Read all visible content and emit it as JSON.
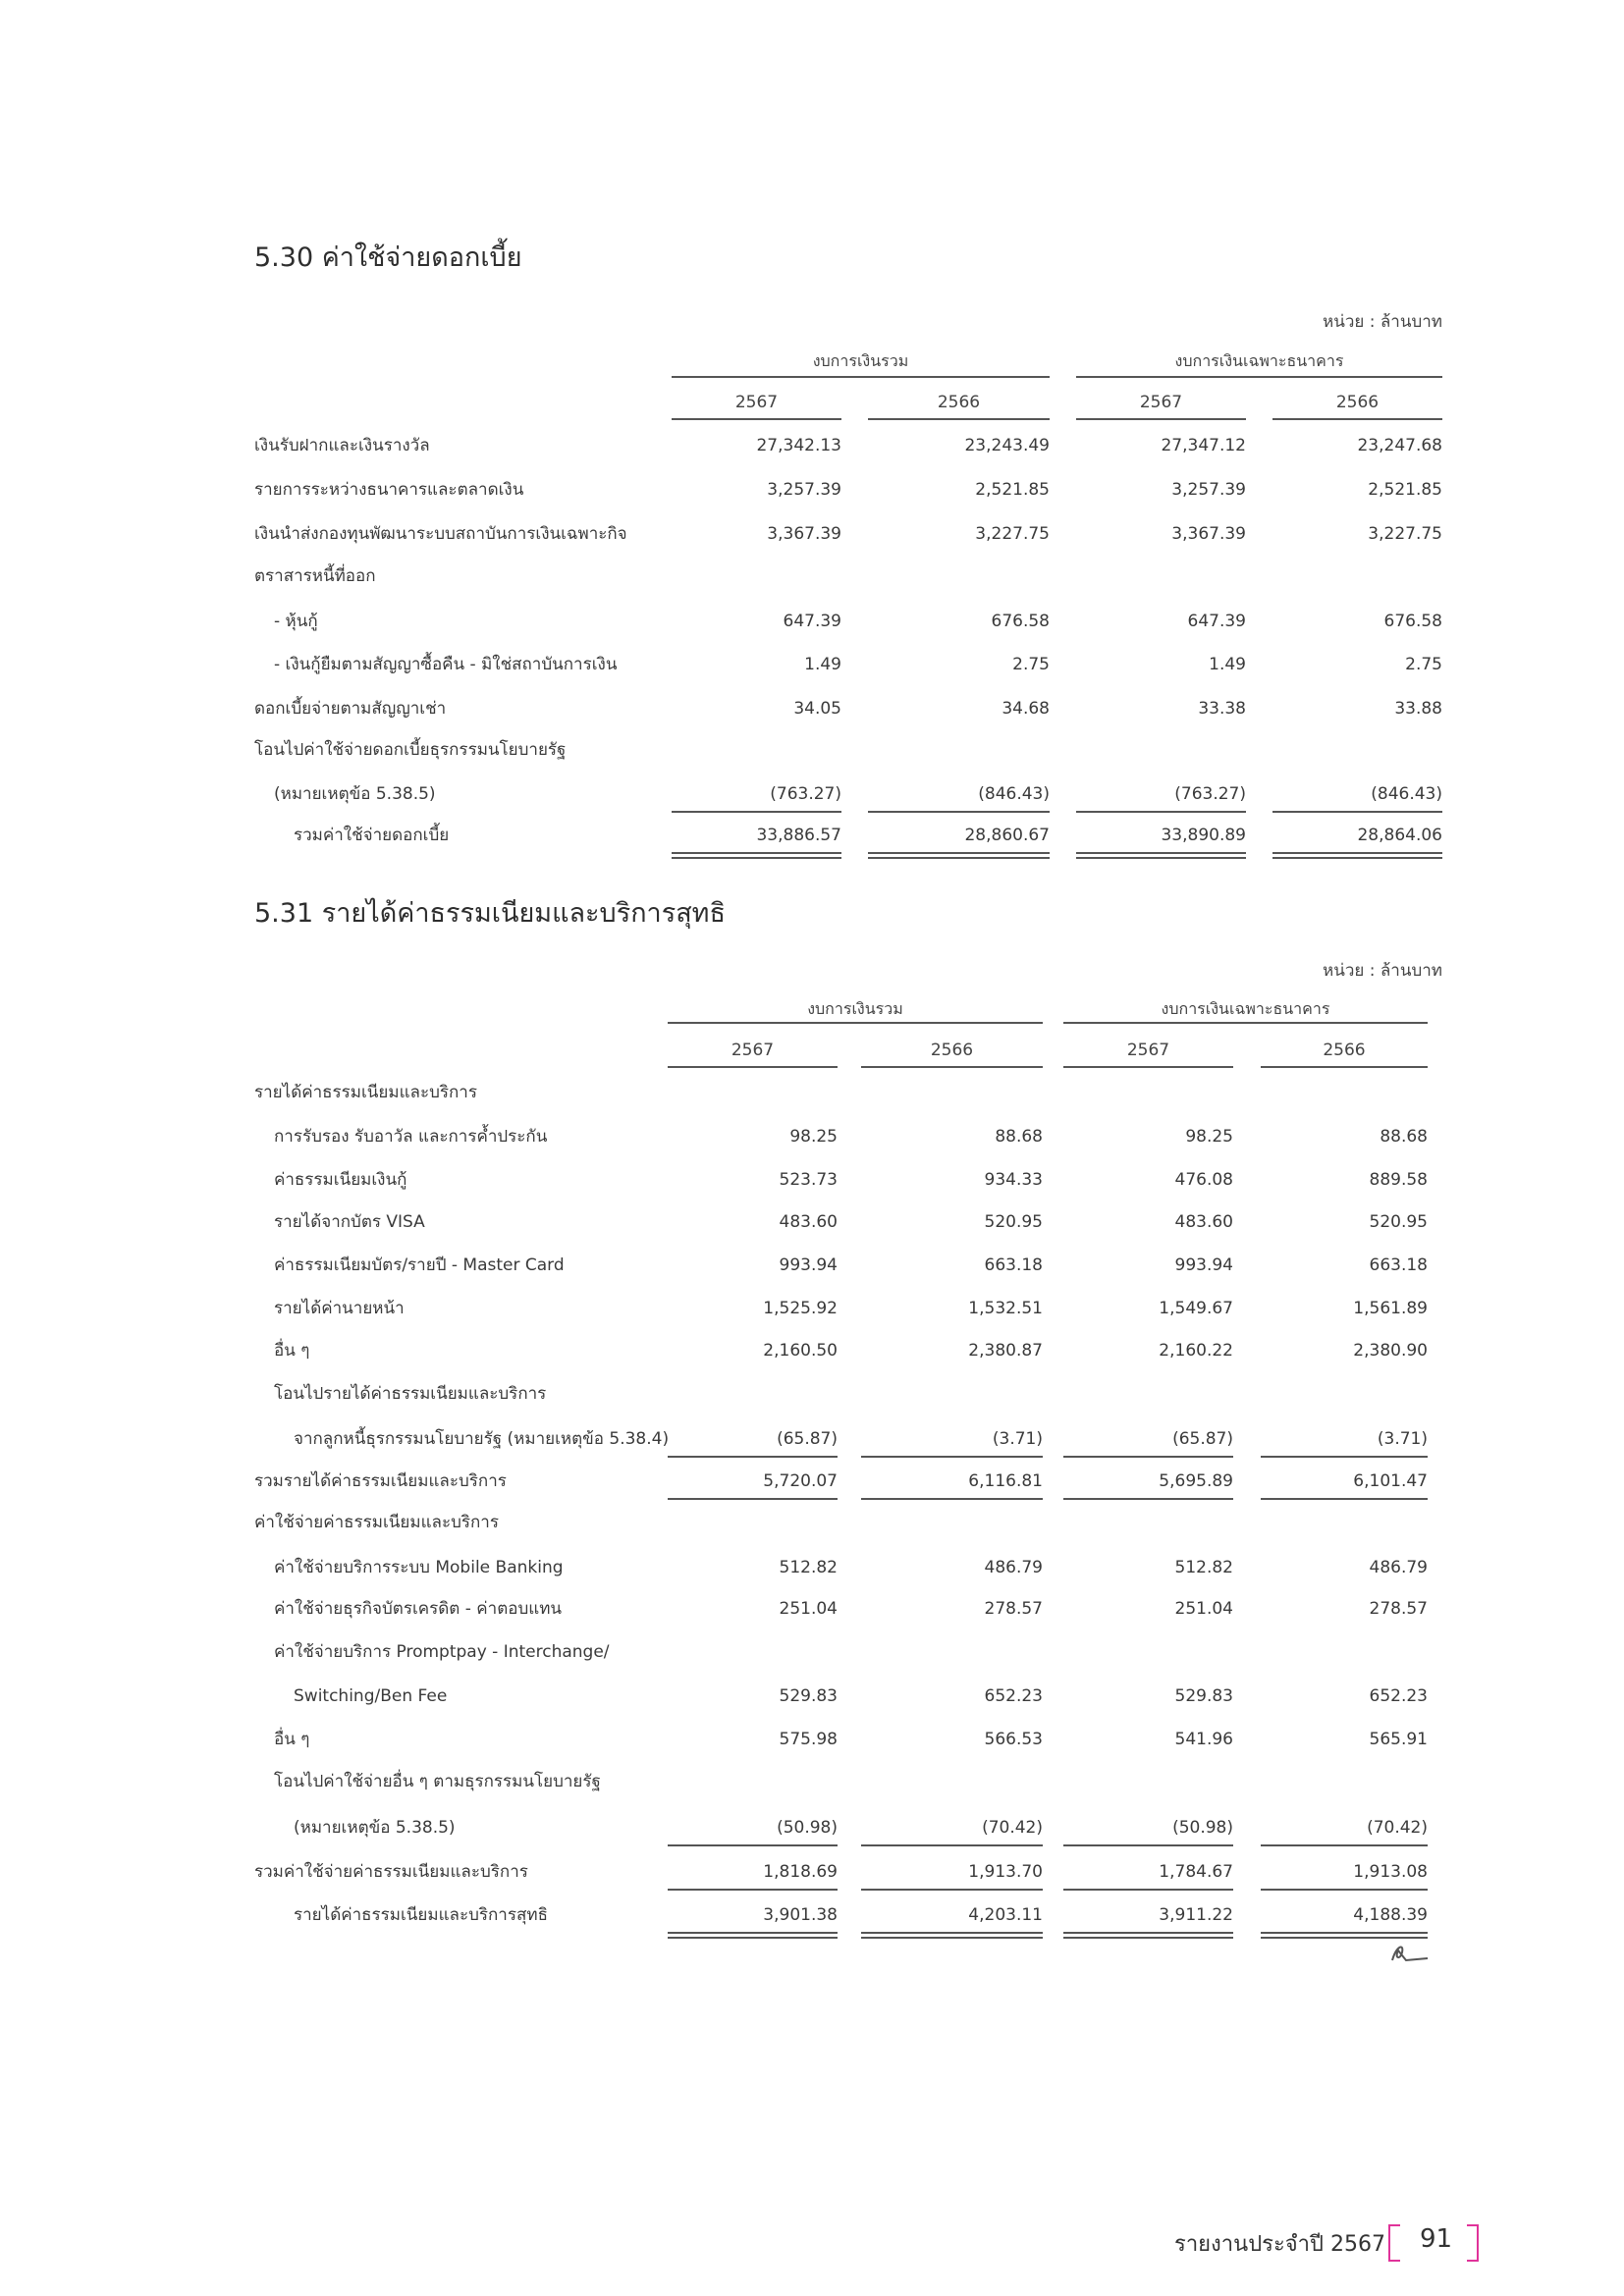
{
  "sections": [
    {
      "title": "5.30  ค่าใช้จ่ายดอกเบี้ย",
      "unit": "หน่วย : ล้านบาท",
      "groups": [
        "งบการเงินรวม",
        "งบการเงินเฉพาะธนาคาร"
      ],
      "years": [
        "2567",
        "2566",
        "2567",
        "2566"
      ],
      "rows": [
        {
          "label": "เงินรับฝากและเงินรางวัล",
          "values": [
            "27,342.13",
            "23,243.49",
            "27,347.12",
            "23,247.68"
          ]
        },
        {
          "label": "รายการระหว่างธนาคารและตลาดเงิน",
          "values": [
            "3,257.39",
            "2,521.85",
            "3,257.39",
            "2,521.85"
          ]
        },
        {
          "label": "เงินนำส่งกองทุนพัฒนาระบบสถาบันการเงินเฉพาะกิจ",
          "values": [
            "3,367.39",
            "3,227.75",
            "3,367.39",
            "3,227.75"
          ]
        },
        {
          "label": "ตราสารหนี้ที่ออก",
          "values": []
        },
        {
          "label": "- หุ้นกู้",
          "values": [
            "647.39",
            "676.58",
            "647.39",
            "676.58"
          ]
        },
        {
          "label": "- เงินกู้ยืมตามสัญญาซื้อคืน - มิใช่สถาบันการเงิน",
          "values": [
            "1.49",
            "2.75",
            "1.49",
            "2.75"
          ]
        },
        {
          "label": "ดอกเบี้ยจ่ายตามสัญญาเช่า",
          "values": [
            "34.05",
            "34.68",
            "33.38",
            "33.88"
          ]
        },
        {
          "label": "โอนไปค่าใช้จ่ายดอกเบี้ยธุรกรรมนโยบายรัฐ",
          "values": []
        },
        {
          "label": "(หมายเหตุข้อ 5.38.5)",
          "values": [
            "(763.27)",
            "(846.43)",
            "(763.27)",
            "(846.43)"
          ]
        },
        {
          "label": "รวมค่าใช้จ่ายดอกเบี้ย",
          "values": [
            "33,886.57",
            "28,860.67",
            "33,890.89",
            "28,864.06"
          ]
        }
      ]
    },
    {
      "title": "5.31   รายได้ค่าธรรมเนียมและบริการสุทธิ",
      "unit": "หน่วย : ล้านบาท",
      "groups": [
        "งบการเงินรวม",
        "งบการเงินเฉพาะธนาคาร"
      ],
      "years": [
        "2567",
        "2566",
        "2567",
        "2566"
      ],
      "rows": [
        {
          "label": "รายได้ค่าธรรมเนียมและบริการ",
          "values": []
        },
        {
          "label": "การรับรอง รับอาวัล และการค้ำประกัน",
          "values": [
            "98.25",
            "88.68",
            "98.25",
            "88.68"
          ]
        },
        {
          "label": "ค่าธรรมเนียมเงินกู้",
          "values": [
            "523.73",
            "934.33",
            "476.08",
            "889.58"
          ]
        },
        {
          "label": "รายได้จากบัตร VISA",
          "values": [
            "483.60",
            "520.95",
            "483.60",
            "520.95"
          ]
        },
        {
          "label": "ค่าธรรมเนียมบัตร/รายปี - Master Card",
          "values": [
            "993.94",
            "663.18",
            "993.94",
            "663.18"
          ]
        },
        {
          "label": "รายได้ค่านายหน้า",
          "values": [
            "1,525.92",
            "1,532.51",
            "1,549.67",
            "1,561.89"
          ]
        },
        {
          "label": "อื่น ๆ",
          "values": [
            "2,160.50",
            "2,380.87",
            "2,160.22",
            "2,380.90"
          ]
        },
        {
          "label": "โอนไปรายได้ค่าธรรมเนียมและบริการ",
          "values": []
        },
        {
          "label": "จากลูกหนี้ธุรกรรมนโยบายรัฐ (หมายเหตุข้อ 5.38.4)",
          "values": [
            "(65.87)",
            "(3.71)",
            "(65.87)",
            "(3.71)"
          ]
        },
        {
          "label": "รวมรายได้ค่าธรรมเนียมและบริการ",
          "values": [
            "5,720.07",
            "6,116.81",
            "5,695.89",
            "6,101.47"
          ]
        },
        {
          "label": "ค่าใช้จ่ายค่าธรรมเนียมและบริการ",
          "values": []
        },
        {
          "label": "ค่าใช้จ่ายบริการระบบ Mobile Banking",
          "values": [
            "512.82",
            "486.79",
            "512.82",
            "486.79"
          ]
        },
        {
          "label": "ค่าใช้จ่ายธุรกิจบัตรเครดิต - ค่าตอบแทน",
          "values": [
            "251.04",
            "278.57",
            "251.04",
            "278.57"
          ]
        },
        {
          "label": "ค่าใช้จ่ายบริการ Promptpay - Interchange/",
          "values": []
        },
        {
          "label": "Switching/Ben Fee",
          "values": [
            "529.83",
            "652.23",
            "529.83",
            "652.23"
          ]
        },
        {
          "label": "อื่น ๆ",
          "values": [
            "575.98",
            "566.53",
            "541.96",
            "565.91"
          ]
        },
        {
          "label": "โอนไปค่าใช้จ่ายอื่น ๆ ตามธุรกรรมนโยบายรัฐ",
          "values": []
        },
        {
          "label": "(หมายเหตุข้อ 5.38.5)",
          "values": [
            "(50.98)",
            "(70.42)",
            "(50.98)",
            "(70.42)"
          ]
        },
        {
          "label": "รวมค่าใช้จ่ายค่าธรรมเนียมและบริการ",
          "values": [
            "1,818.69",
            "1,913.70",
            "1,784.67",
            "1,913.08"
          ]
        },
        {
          "label": "รายได้ค่าธรรมเนียมและบริการสุทธิ",
          "values": [
            "3,901.38",
            "4,203.11",
            "3,911.22",
            "4,188.39"
          ]
        }
      ]
    }
  ],
  "footer": {
    "report_label": "รายงานประจำปี 2567",
    "page_number": "91",
    "accent_color": "#e0339a"
  }
}
